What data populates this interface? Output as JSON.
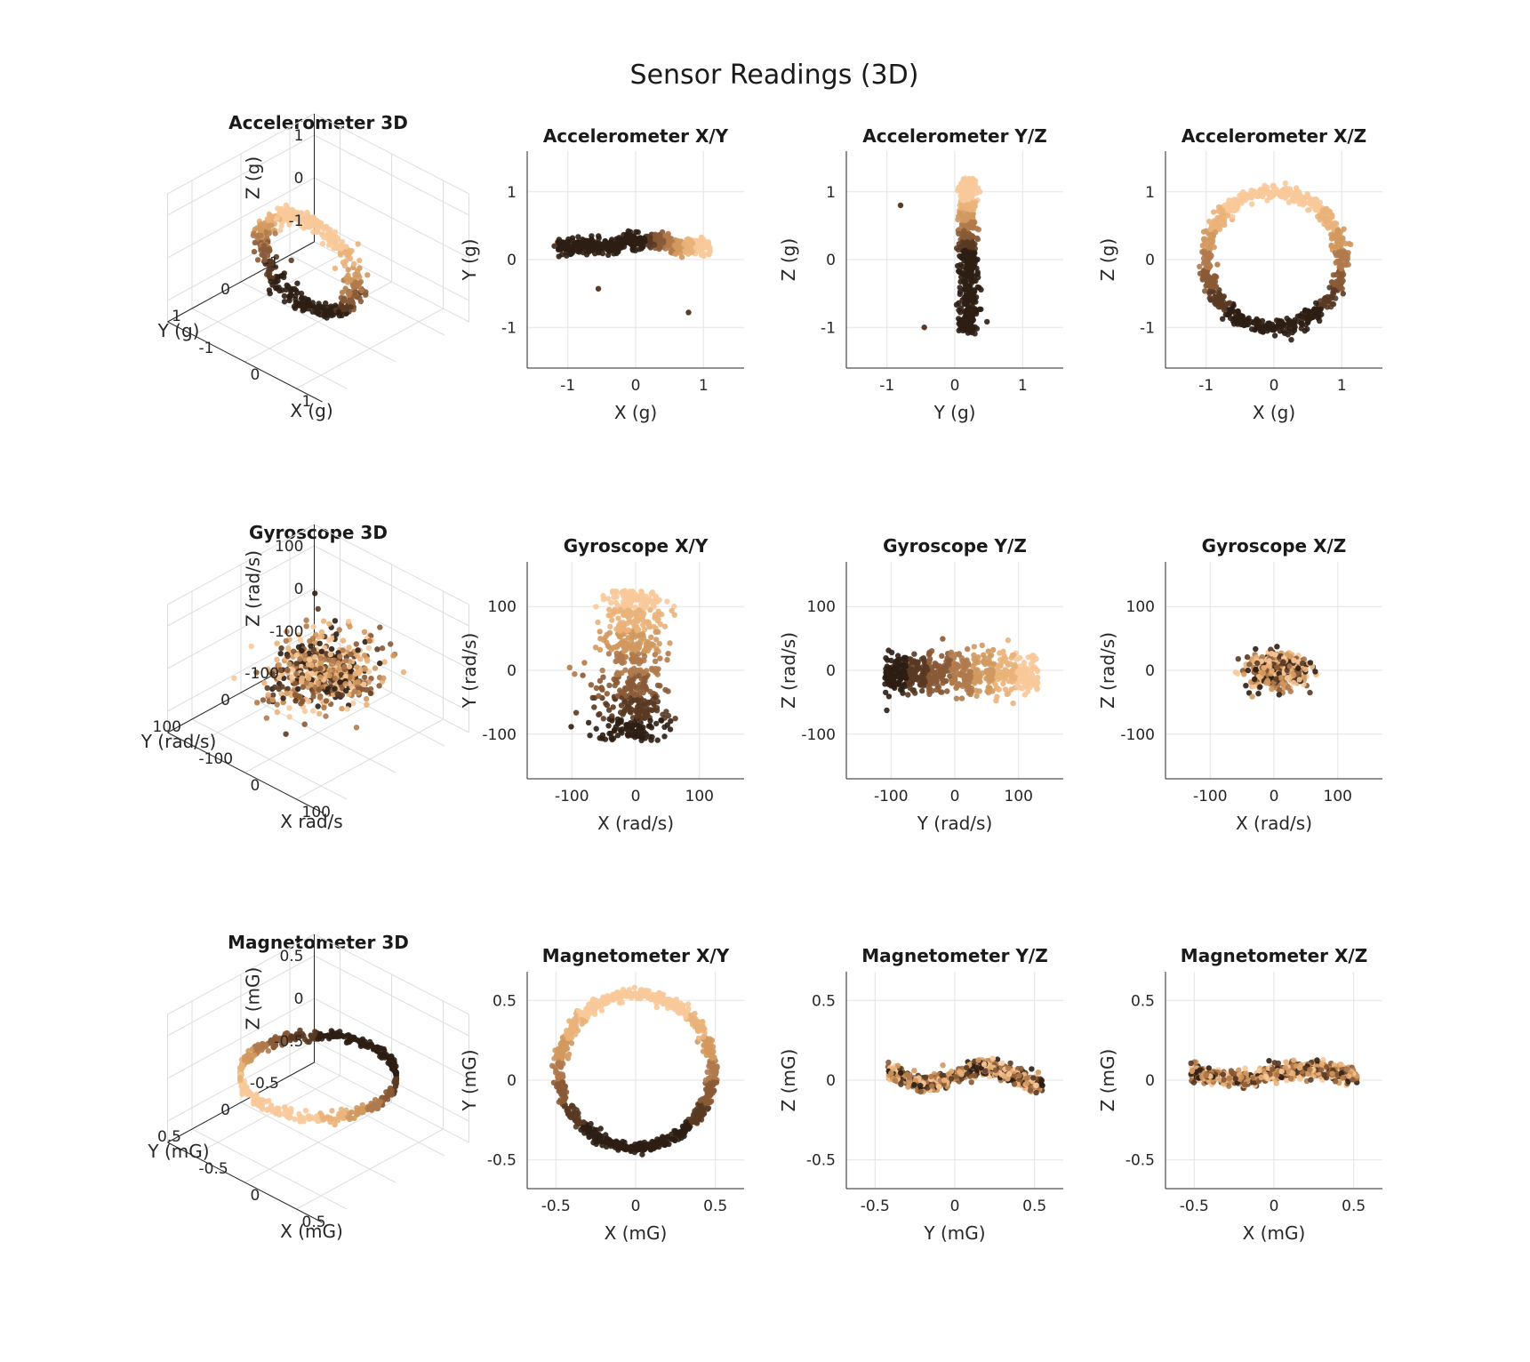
{
  "figure": {
    "title": "Sensor Readings (3D)"
  },
  "colors": {
    "palette": [
      "#2e1e14",
      "#5a3a24",
      "#8a5a36",
      "#b07a4c",
      "#d2995f",
      "#eab27a",
      "#f8c99a"
    ]
  },
  "chart_data": [
    {
      "type": "scatter3d",
      "title": "Accelerometer 3D",
      "xlabel": "X (g)",
      "ylabel": "Y (g)",
      "zlabel": "Z (g)",
      "xticks": [
        "-1",
        "0",
        "1"
      ],
      "yticks": [
        "-1",
        "0",
        "1"
      ],
      "zticks": [
        "-1",
        "0",
        "1"
      ],
      "pattern": "vertical ring in X-Z plane, radius ~1 g, Y ~0.2 g"
    },
    {
      "type": "scatter",
      "title": "Accelerometer X/Y",
      "xlabel": "X (g)",
      "ylabel": "Y (g)",
      "xlim": [
        -1.6,
        1.6
      ],
      "ylim": [
        -1.6,
        1.6
      ],
      "xticks": [
        "-1",
        "0",
        "1"
      ],
      "yticks": [
        "-1",
        "0",
        "1"
      ],
      "pattern": "horizontal band, X from -1.2 to 1.1, Y ~0.2",
      "outliers": [
        [
          -0.55,
          -0.43
        ],
        [
          0.78,
          -0.78
        ],
        [
          -1.2,
          0.2
        ]
      ]
    },
    {
      "type": "scatter",
      "title": "Accelerometer Y/Z",
      "xlabel": "Y (g)",
      "ylabel": "Z (g)",
      "xlim": [
        -1.6,
        1.6
      ],
      "ylim": [
        -1.6,
        1.6
      ],
      "xticks": [
        "-1",
        "0",
        "1"
      ],
      "yticks": [
        "-1",
        "0",
        "1"
      ],
      "pattern": "vertical band, Y ~0.2, Z from -1.1 to 1.2",
      "outliers": [
        [
          -0.8,
          0.8
        ],
        [
          -0.45,
          -1.0
        ]
      ]
    },
    {
      "type": "scatter",
      "title": "Accelerometer X/Z",
      "xlabel": "X (g)",
      "ylabel": "Z (g)",
      "xlim": [
        -1.6,
        1.6
      ],
      "ylim": [
        -1.6,
        1.6
      ],
      "xticks": [
        "-1",
        "0",
        "1"
      ],
      "yticks": [
        "-1",
        "0",
        "1"
      ],
      "pattern": "ring centered at (0,0) radius ~1"
    },
    {
      "type": "scatter3d",
      "title": "Gyroscope 3D",
      "xlabel": "X rad/s",
      "ylabel": "Y (rad/s)",
      "zlabel": "Z (rad/s)",
      "xticks": [
        "-100",
        "0",
        "100"
      ],
      "yticks": [
        "-100",
        "0",
        "100"
      ],
      "zticks": [
        "-100",
        "0",
        "100"
      ],
      "pattern": "compact cloud near origin"
    },
    {
      "type": "scatter",
      "title": "Gyroscope X/Y",
      "xlabel": "X (rad/s)",
      "ylabel": "Y (rad/s)",
      "xlim": [
        -170,
        170
      ],
      "ylim": [
        -170,
        170
      ],
      "xticks": [
        "-100",
        "0",
        "100"
      ],
      "yticks": [
        "-100",
        "0",
        "100"
      ],
      "pattern": "vertical band, X from -80 to 80, Y from -110 to 130"
    },
    {
      "type": "scatter",
      "title": "Gyroscope Y/Z",
      "xlabel": "Y (rad/s)",
      "ylabel": "Z (rad/s)",
      "xlim": [
        -170,
        170
      ],
      "ylim": [
        -170,
        170
      ],
      "xticks": [
        "-100",
        "0",
        "100"
      ],
      "yticks": [
        "-100",
        "0",
        "100"
      ],
      "pattern": "horizontal band, Y from -115 to 135, Z from -60 to 60"
    },
    {
      "type": "scatter",
      "title": "Gyroscope X/Z",
      "xlabel": "X (rad/s)",
      "ylabel": "Z (rad/s)",
      "xlim": [
        -170,
        170
      ],
      "ylim": [
        -170,
        170
      ],
      "xticks": [
        "-100",
        "0",
        "100"
      ],
      "yticks": [
        "-100",
        "0",
        "100"
      ],
      "pattern": "compact blob, X from -70 to 120, Z from -60 to 60"
    },
    {
      "type": "scatter3d",
      "title": "Magnetometer 3D",
      "xlabel": "X (mG)",
      "ylabel": "Y (mG)",
      "zlabel": "Z (mG)",
      "xticks": [
        "-0.5",
        "0",
        "0.5"
      ],
      "yticks": [
        "-0.5",
        "0",
        "0.5"
      ],
      "zticks": [
        "-0.5",
        "0",
        "0.5"
      ],
      "pattern": "flat horizontal ring, radius ~0.5 mG"
    },
    {
      "type": "scatter",
      "title": "Magnetometer X/Y",
      "xlabel": "X (mG)",
      "ylabel": "Y (mG)",
      "xlim": [
        -0.68,
        0.68
      ],
      "ylim": [
        -0.68,
        0.68
      ],
      "xticks": [
        "-0.5",
        "0",
        "0.5"
      ],
      "yticks": [
        "-0.5",
        "0",
        "0.5"
      ],
      "pattern": "ring centered (0,0.05) radius ~0.48"
    },
    {
      "type": "scatter",
      "title": "Magnetometer Y/Z",
      "xlabel": "Y (mG)",
      "ylabel": "Z (mG)",
      "xlim": [
        -0.68,
        0.68
      ],
      "ylim": [
        -0.68,
        0.68
      ],
      "xticks": [
        "-0.5",
        "0",
        "0.5"
      ],
      "yticks": [
        "-0.5",
        "0",
        "0.5"
      ],
      "pattern": "flat band, Y from -0.43 to 0.55, Z from -0.15 to 0.2"
    },
    {
      "type": "scatter",
      "title": "Magnetometer X/Z",
      "xlabel": "X (mG)",
      "ylabel": "Z (mG)",
      "xlim": [
        -0.68,
        0.68
      ],
      "ylim": [
        -0.68,
        0.68
      ],
      "xticks": [
        "-0.5",
        "0",
        "0.5"
      ],
      "yticks": [
        "-0.5",
        "0",
        "0.5"
      ],
      "pattern": "flat band, X from -0.52 to 0.52, Z from -0.2 to 0.2"
    }
  ]
}
